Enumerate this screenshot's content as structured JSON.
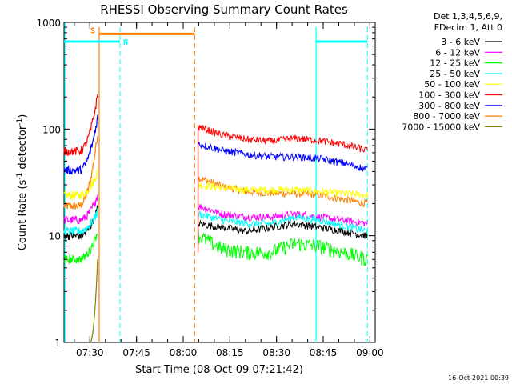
{
  "chart_data": {
    "type": "line",
    "title": "RHESSI Observing Summary Count Rates",
    "xlabel": "Start Time (08-Oct-09 07:21:42)",
    "ylabel": "Count Rate (s⁻¹ detector⁻¹)",
    "ylabel_parts": {
      "base": "Count Rate (s",
      "exp1": "-1",
      "mid": " detector",
      "exp2": "-1",
      "end": ")"
    },
    "yscale": "log",
    "ylim": [
      1,
      1000
    ],
    "xlim_minutes": [
      0,
      100
    ],
    "x_tick_minutes": [
      8.3,
      23.3,
      38.3,
      53.3,
      68.3,
      83.3,
      98.3
    ],
    "x_tick_labels": [
      "07:30",
      "07:45",
      "08:00",
      "08:15",
      "08:30",
      "08:45",
      "09:00"
    ],
    "y_ticks": [
      1,
      10,
      100,
      1000
    ],
    "y_tick_labels": [
      "1",
      "10",
      "100",
      "1000"
    ],
    "legend_header": [
      "Det 1,3,4,5,6,9,",
      "FDecim 1, Att 0"
    ],
    "data_gap_minutes": [
      11.3,
      42.0
    ],
    "series": [
      {
        "name": "3 - 6 keV",
        "color": "#000000",
        "pre": [
          10,
          18
        ],
        "post": [
          13,
          12,
          11,
          12,
          13,
          12,
          11,
          10
        ]
      },
      {
        "name": "6 - 12 keV",
        "color": "#ff00ff",
        "pre": [
          14,
          24
        ],
        "post": [
          19,
          16,
          15,
          15,
          16,
          15,
          14,
          13
        ]
      },
      {
        "name": "12 - 25 keV",
        "color": "#00ff00",
        "pre": [
          6,
          11
        ],
        "post": [
          10,
          7.5,
          7,
          7,
          8.5,
          8,
          7,
          6
        ]
      },
      {
        "name": "25 - 50 keV",
        "color": "#00ffff",
        "pre": [
          11,
          17
        ],
        "post": [
          16,
          14,
          13,
          13,
          15,
          14,
          12.5,
          11
        ]
      },
      {
        "name": "50 - 100 keV",
        "color": "#ffff00",
        "pre": [
          24,
          40
        ],
        "post": [
          30,
          28,
          27,
          27,
          27,
          26,
          25,
          24
        ]
      },
      {
        "name": "100 - 300 keV",
        "color": "#ff0000",
        "pre": [
          62,
          210
        ],
        "post": [
          105,
          88,
          80,
          77,
          82,
          78,
          72,
          63
        ]
      },
      {
        "name": "300 - 800 keV",
        "color": "#0000ff",
        "pre": [
          41,
          130
        ],
        "post": [
          73,
          63,
          58,
          55,
          55,
          53,
          48,
          42
        ]
      },
      {
        "name": "800 - 7000 keV",
        "color": "#ff8000",
        "pre": [
          19,
          90
        ],
        "post": [
          35,
          29,
          26,
          25,
          25,
          24,
          22,
          20
        ]
      },
      {
        "name": "7000 - 15000 keV",
        "color": "#808000",
        "pre": [
          1,
          6
        ],
        "post": []
      }
    ],
    "status_bars": [
      {
        "label": "",
        "color": "#00ffff",
        "start_min": 0,
        "end_min": 18,
        "level": 660
      },
      {
        "label": "S",
        "color": "#ff8000",
        "start_min": 11.3,
        "end_min": 42.0,
        "level": 780
      },
      {
        "label": "N",
        "color": "#00ffff",
        "start_min": 18,
        "end_min": 18,
        "level": 660
      },
      {
        "label": "",
        "color": "#00ffff",
        "start_min": 81.0,
        "end_min": 97.5,
        "level": 660
      }
    ],
    "footer_date": "16-Oct-2021 00:39"
  }
}
